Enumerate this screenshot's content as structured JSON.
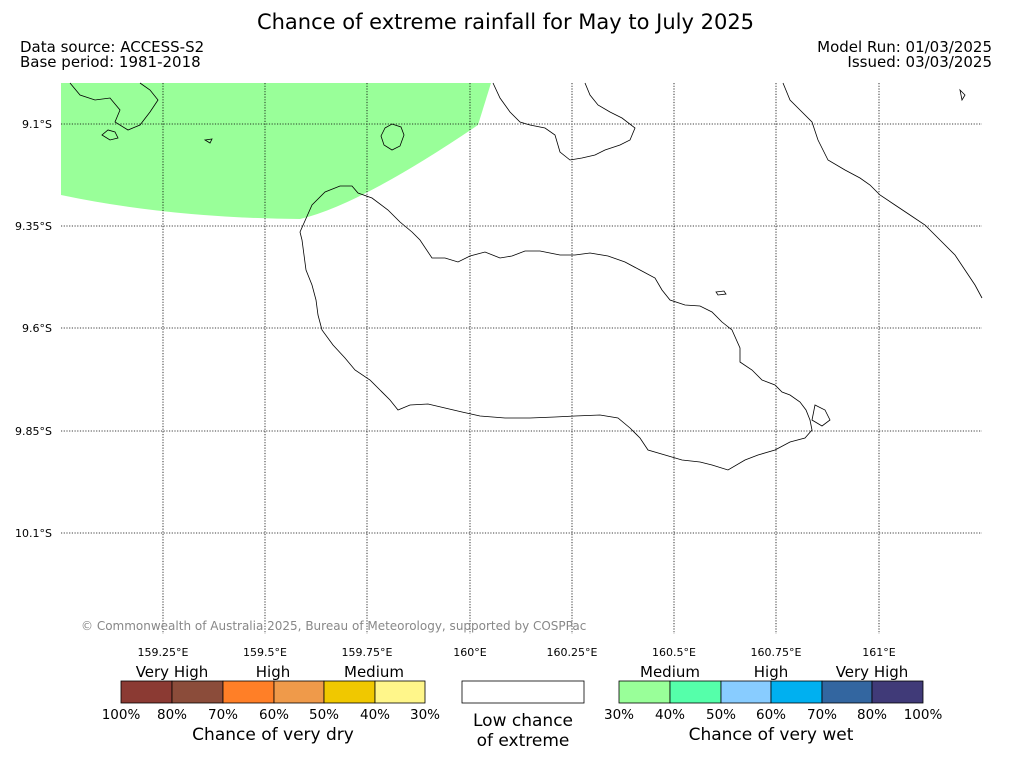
{
  "header": {
    "title": "Chance of extreme rainfall for May to July 2025",
    "data_source": "Data source: ACCESS-S2",
    "base_period": "Base period: 1981-2018",
    "model_run": "Model Run: 01/03/2025",
    "issued": "Issued: 03/03/2025"
  },
  "map": {
    "lat_labels": [
      "9.1°S",
      "9.35°S",
      "9.6°S",
      "9.85°S",
      "10.1°S"
    ],
    "lon_labels": [
      "159.25°E",
      "159.5°E",
      "159.75°E",
      "160°E",
      "160.25°E",
      "160.5°E",
      "160.75°E",
      "161°E"
    ],
    "shaded_region_category": "Medium chance of very wet (30%-40%)",
    "shaded_region_color": "#99ff99",
    "copyright": "© Commonwealth of Australia 2025, Bureau of Meteorology, supported by COSPPac"
  },
  "legend": {
    "dry": {
      "categories": [
        "Very High",
        "High",
        "Medium"
      ],
      "percent_labels": [
        "100%",
        "80%",
        "70%",
        "60%",
        "50%",
        "40%",
        "30%"
      ],
      "colors": [
        "#8b3a33",
        "#8b4c3a",
        "#ff7f27",
        "#ef9a4a",
        "#f0c800",
        "#fff68a"
      ],
      "caption": "Chance of very dry"
    },
    "low": {
      "caption_line1": "Low chance",
      "caption_line2": "of extreme",
      "color": "#ffffff"
    },
    "wet": {
      "categories": [
        "Medium",
        "High",
        "Very High"
      ],
      "percent_labels": [
        "30%",
        "40%",
        "50%",
        "60%",
        "70%",
        "80%",
        "100%"
      ],
      "colors": [
        "#99ff99",
        "#55ffaa",
        "#88ccff",
        "#00b0f0",
        "#3366a0",
        "#403a78"
      ],
      "caption": "Chance of very wet"
    }
  }
}
